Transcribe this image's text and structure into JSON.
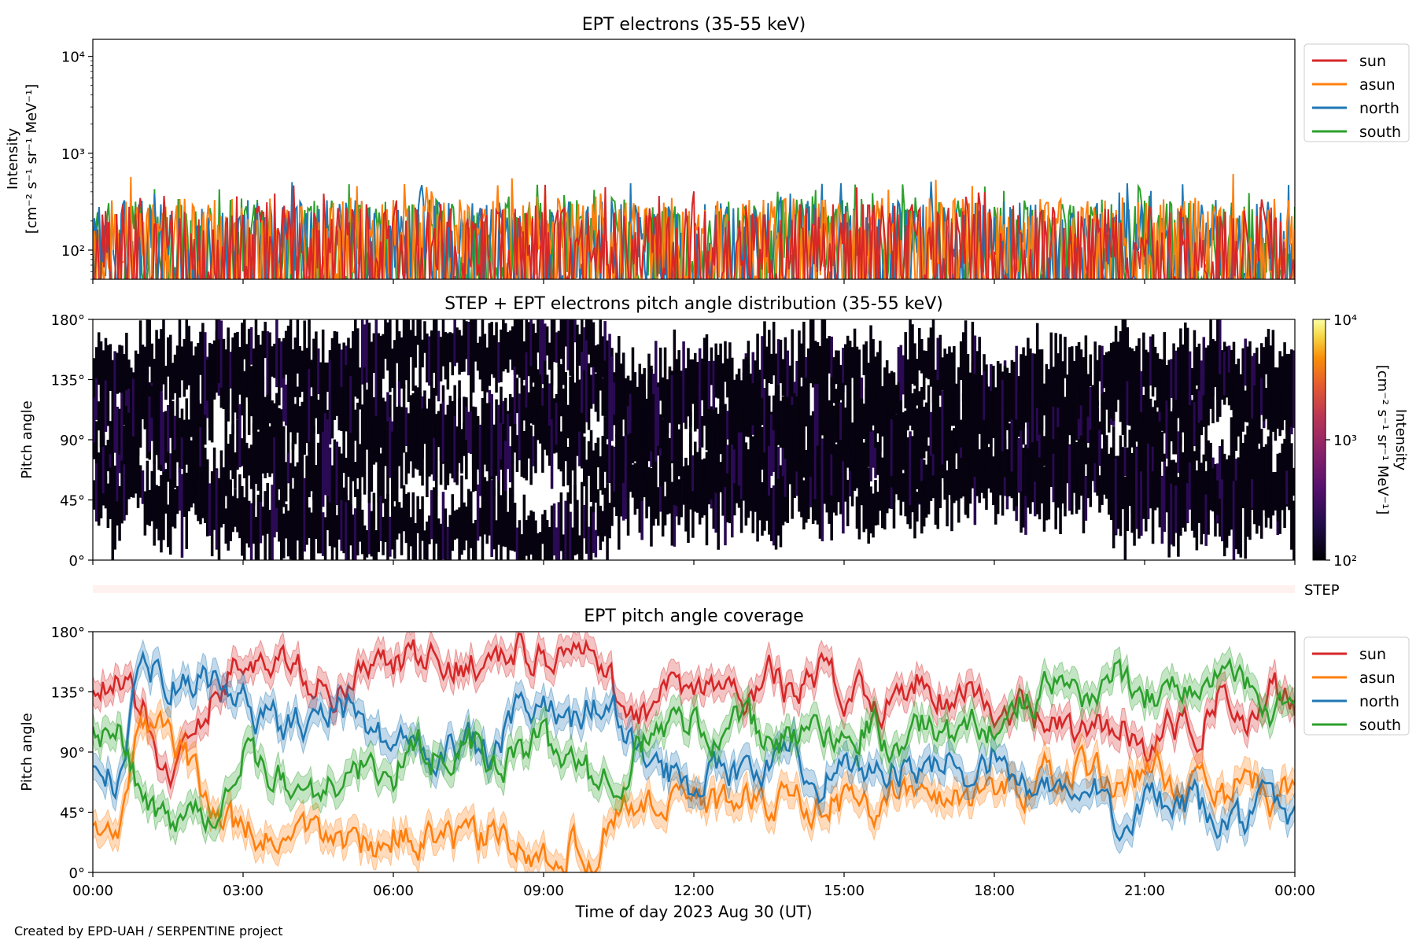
{
  "footer": "Created by EPD-UAH / SERPENTINE project",
  "xaxis": {
    "label": "Time of day 2023 Aug 30 (UT)",
    "range_hours": [
      0,
      24
    ],
    "ticks": [
      0,
      3,
      6,
      9,
      12,
      15,
      18,
      21,
      24
    ],
    "tick_labels": [
      "00:00",
      "03:00",
      "06:00",
      "09:00",
      "12:00",
      "15:00",
      "18:00",
      "21:00",
      "00:00"
    ]
  },
  "colors": {
    "sun": "#d62728",
    "asun": "#ff7f0e",
    "north": "#1f77b4",
    "south": "#2ca02c"
  },
  "chart_data": [
    {
      "type": "line",
      "title": "EPT electrons (35-55 keV)",
      "ylabel": "Intensity",
      "yunit": "[cm⁻² s⁻¹ sr⁻¹ MeV⁻¹]",
      "yscale": "log",
      "ylim": [
        50,
        15000
      ],
      "ytick_values": [
        100,
        1000,
        10000
      ],
      "ytick_labels": [
        "10²",
        "10³",
        "10⁴"
      ],
      "legend_position": "outside-right",
      "series": [
        {
          "name": "sun",
          "typical_range": [
            50,
            300
          ],
          "peak": 480
        },
        {
          "name": "asun",
          "typical_range": [
            50,
            350
          ],
          "peak": 620
        },
        {
          "name": "north",
          "typical_range": [
            50,
            330
          ],
          "peak": 520
        },
        {
          "name": "south",
          "typical_range": [
            50,
            340
          ],
          "peak": 480
        }
      ]
    },
    {
      "type": "heatmap",
      "title": "STEP + EPT electrons pitch angle distribution (35-55 keV)",
      "ylabel": "Pitch angle",
      "ylim": [
        0,
        180
      ],
      "ytick_values": [
        0,
        45,
        90,
        135,
        180
      ],
      "ytick_labels": [
        "0°",
        "45°",
        "90°",
        "135°",
        "180°"
      ],
      "colorbar": {
        "label": "Intensity",
        "unit": "[cm⁻² s⁻¹ sr⁻¹ MeV⁻¹]",
        "scale": "log",
        "range": [
          100,
          10000
        ],
        "tick_labels": [
          "10²",
          "10³",
          "10⁴"
        ],
        "colormap": "inferno"
      },
      "strip_label": "STEP"
    },
    {
      "type": "line",
      "title": "EPT pitch angle coverage",
      "ylabel": "Pitch angle",
      "ylim": [
        0,
        180
      ],
      "ytick_values": [
        0,
        45,
        90,
        135,
        180
      ],
      "ytick_labels": [
        "0°",
        "45°",
        "90°",
        "135°",
        "180°"
      ],
      "legend_position": "outside-right",
      "x_hours": [
        0,
        0.5,
        1,
        1.5,
        2,
        2.5,
        3,
        3.5,
        4,
        4.5,
        5,
        5.5,
        6,
        6.5,
        7,
        7.5,
        8,
        8.5,
        9,
        9.5,
        10,
        10.5,
        11,
        11.5,
        12,
        12.5,
        13,
        13.5,
        14,
        14.5,
        15,
        15.5,
        16,
        16.5,
        17,
        17.5,
        18,
        18.5,
        19,
        19.5,
        20,
        20.5,
        21,
        21.5,
        22,
        22.5,
        23,
        23.5,
        24
      ],
      "band_halfwidth_deg": 10,
      "series": [
        {
          "name": "sun",
          "values": [
            135,
            140,
            120,
            75,
            95,
            140,
            160,
            150,
            155,
            140,
            135,
            150,
            155,
            160,
            150,
            160,
            155,
            165,
            160,
            165,
            160,
            130,
            120,
            135,
            130,
            140,
            125,
            150,
            130,
            150,
            135,
            140,
            120,
            150,
            130,
            140,
            115,
            120,
            110,
            105,
            100,
            120,
            95,
            110,
            100,
            140,
            105,
            145,
            120
          ]
        },
        {
          "name": "asun",
          "values": [
            45,
            40,
            115,
            105,
            75,
            40,
            30,
            25,
            20,
            30,
            25,
            20,
            30,
            20,
            25,
            20,
            30,
            15,
            10,
            20,
            15,
            50,
            55,
            45,
            60,
            50,
            60,
            45,
            60,
            50,
            55,
            45,
            65,
            50,
            60,
            55,
            65,
            55,
            80,
            70,
            80,
            60,
            80,
            70,
            65,
            50,
            75,
            55,
            65
          ]
        },
        {
          "name": "north",
          "values": [
            75,
            70,
            150,
            145,
            140,
            145,
            125,
            115,
            110,
            110,
            120,
            110,
            95,
            100,
            90,
            95,
            85,
            120,
            120,
            110,
            130,
            115,
            85,
            75,
            65,
            85,
            70,
            80,
            90,
            70,
            85,
            75,
            80,
            70,
            85,
            75,
            90,
            65,
            60,
            55,
            60,
            40,
            55,
            45,
            50,
            35,
            40,
            55,
            35
          ]
        },
        {
          "name": "south",
          "values": [
            110,
            105,
            50,
            40,
            45,
            50,
            85,
            75,
            60,
            65,
            70,
            80,
            75,
            90,
            85,
            95,
            80,
            85,
            100,
            80,
            70,
            75,
            95,
            110,
            115,
            100,
            115,
            95,
            100,
            110,
            100,
            115,
            90,
            110,
            105,
            110,
            110,
            125,
            135,
            140,
            130,
            150,
            135,
            140,
            135,
            150,
            140,
            110,
            130
          ]
        }
      ]
    }
  ]
}
